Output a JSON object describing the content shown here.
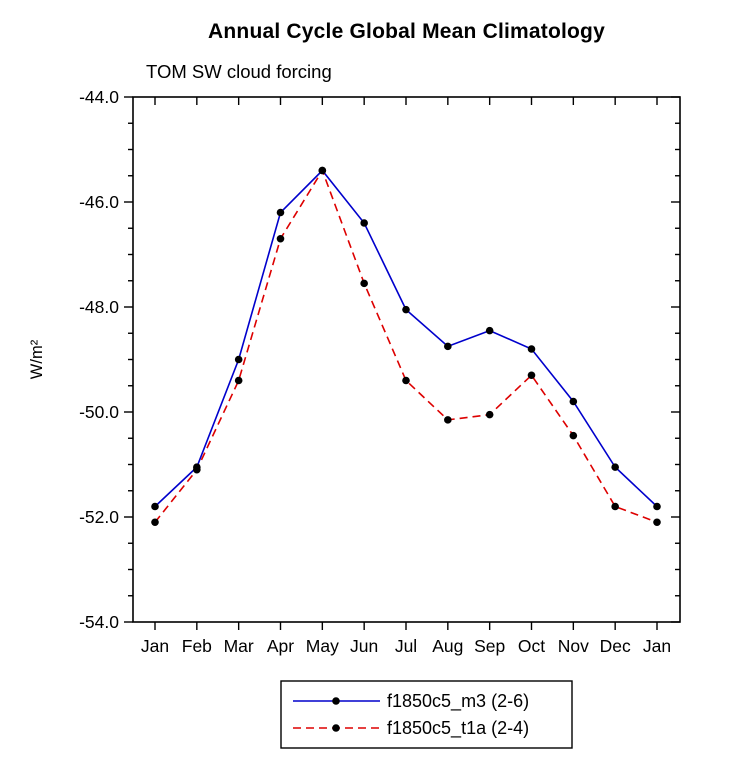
{
  "page": {
    "background": "#ffffff"
  },
  "chart_data": {
    "type": "line",
    "title": "Annual Cycle Global Mean Climatology",
    "subtitle": "TOM SW cloud forcing",
    "ylabel": "W/m²",
    "xlabel": "",
    "legend_position": "bottom",
    "grid": false,
    "categories": [
      "Jan",
      "Feb",
      "Mar",
      "Apr",
      "May",
      "Jun",
      "Jul",
      "Aug",
      "Sep",
      "Oct",
      "Nov",
      "Dec",
      "Jan"
    ],
    "ylim": [
      -54.0,
      -44.0
    ],
    "yticks": [
      -44.0,
      -46.0,
      -48.0,
      -50.0,
      -52.0,
      -54.0
    ],
    "ytick_labels": [
      "-44.0",
      "-46.0",
      "-48.0",
      "-50.0",
      "-52.0",
      "-54.0"
    ],
    "minor_tick_interval": 0.5,
    "marker_color": "#000000",
    "axis_color": "#000000",
    "series": [
      {
        "name": "f1850c5_m3 (2-6)",
        "color": "#0000cc",
        "line_style": "solid",
        "values": [
          -51.8,
          -51.05,
          -49.0,
          -46.2,
          -45.4,
          -46.4,
          -48.05,
          -48.75,
          -48.45,
          -48.8,
          -49.8,
          -51.05,
          -51.8
        ]
      },
      {
        "name": "f1850c5_t1a (2-4)",
        "color": "#dd0000",
        "line_style": "dashed",
        "values": [
          -52.1,
          -51.1,
          -49.4,
          -46.7,
          -45.4,
          -47.55,
          -49.4,
          -50.15,
          -50.05,
          -49.3,
          -50.45,
          -51.8,
          -52.1
        ]
      }
    ]
  }
}
